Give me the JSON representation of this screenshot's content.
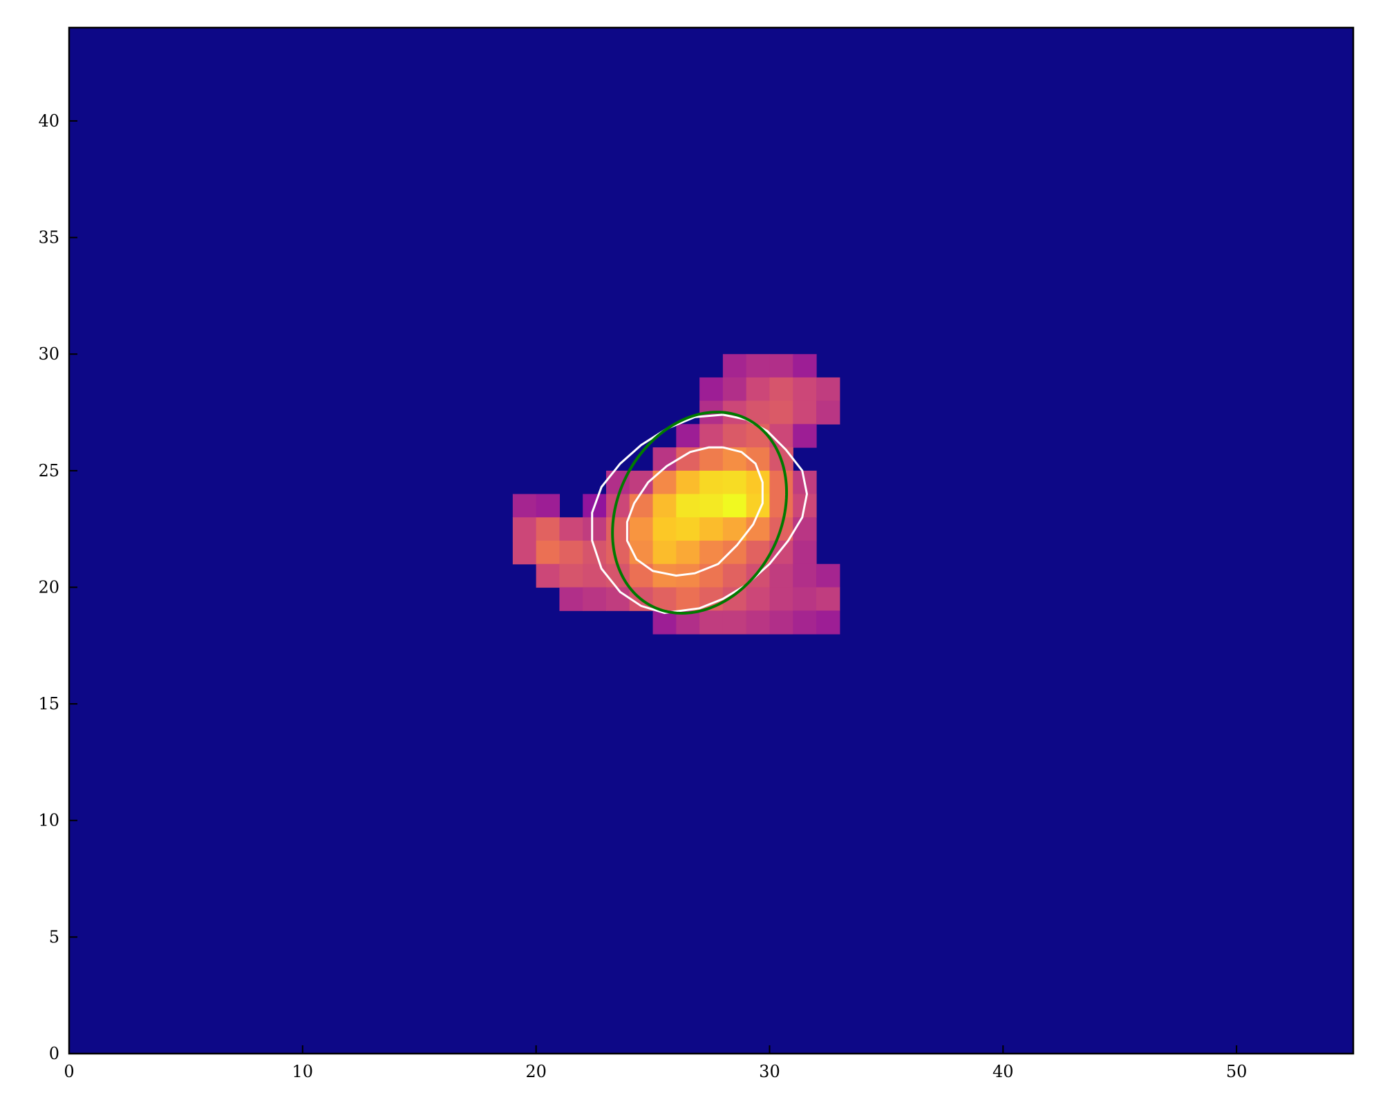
{
  "chart_data": {
    "type": "heatmap",
    "title": "",
    "xlabel": "",
    "ylabel": "",
    "xlim": [
      0,
      55
    ],
    "ylim": [
      0,
      44
    ],
    "xticks": [
      0,
      10,
      20,
      30,
      40,
      50
    ],
    "yticks": [
      0,
      5,
      10,
      15,
      20,
      25,
      30,
      35,
      40
    ],
    "xtick_labels": [
      "0",
      "10",
      "20",
      "30",
      "40",
      "50"
    ],
    "ytick_labels": [
      "0",
      "5",
      "10",
      "15",
      "20",
      "25",
      "30",
      "35",
      "40"
    ],
    "grid": false,
    "colormap": "plasma",
    "background_color": "#0d0887",
    "pixels_note_units": "x/y are pixel-cell lower-left corners in data units, value normalized 0-1",
    "cells": [
      {
        "x": 28,
        "y": 29,
        "v": 0.35
      },
      {
        "x": 29,
        "y": 29,
        "v": 0.38
      },
      {
        "x": 30,
        "y": 29,
        "v": 0.38
      },
      {
        "x": 31,
        "y": 29,
        "v": 0.33
      },
      {
        "x": 27,
        "y": 28,
        "v": 0.33
      },
      {
        "x": 28,
        "y": 28,
        "v": 0.38
      },
      {
        "x": 29,
        "y": 28,
        "v": 0.45
      },
      {
        "x": 30,
        "y": 28,
        "v": 0.5
      },
      {
        "x": 31,
        "y": 28,
        "v": 0.45
      },
      {
        "x": 32,
        "y": 28,
        "v": 0.42
      },
      {
        "x": 27,
        "y": 27,
        "v": 0.38
      },
      {
        "x": 28,
        "y": 27,
        "v": 0.45
      },
      {
        "x": 29,
        "y": 27,
        "v": 0.5
      },
      {
        "x": 30,
        "y": 27,
        "v": 0.52
      },
      {
        "x": 31,
        "y": 27,
        "v": 0.45
      },
      {
        "x": 32,
        "y": 27,
        "v": 0.4
      },
      {
        "x": 26,
        "y": 26,
        "v": 0.33
      },
      {
        "x": 27,
        "y": 26,
        "v": 0.45
      },
      {
        "x": 28,
        "y": 26,
        "v": 0.52
      },
      {
        "x": 29,
        "y": 26,
        "v": 0.55
      },
      {
        "x": 30,
        "y": 26,
        "v": 0.45
      },
      {
        "x": 31,
        "y": 26,
        "v": 0.33
      },
      {
        "x": 25,
        "y": 25,
        "v": 0.4
      },
      {
        "x": 26,
        "y": 25,
        "v": 0.55
      },
      {
        "x": 27,
        "y": 25,
        "v": 0.65
      },
      {
        "x": 28,
        "y": 25,
        "v": 0.72
      },
      {
        "x": 29,
        "y": 25,
        "v": 0.65
      },
      {
        "x": 30,
        "y": 25,
        "v": 0.5
      },
      {
        "x": 23,
        "y": 24,
        "v": 0.38
      },
      {
        "x": 24,
        "y": 24,
        "v": 0.42
      },
      {
        "x": 25,
        "y": 24,
        "v": 0.7
      },
      {
        "x": 26,
        "y": 24,
        "v": 0.85
      },
      {
        "x": 27,
        "y": 24,
        "v": 0.92
      },
      {
        "x": 28,
        "y": 24,
        "v": 0.93
      },
      {
        "x": 29,
        "y": 24,
        "v": 0.88
      },
      {
        "x": 30,
        "y": 24,
        "v": 0.6
      },
      {
        "x": 31,
        "y": 24,
        "v": 0.42
      },
      {
        "x": 19,
        "y": 23,
        "v": 0.35
      },
      {
        "x": 20,
        "y": 23,
        "v": 0.33
      },
      {
        "x": 22,
        "y": 23,
        "v": 0.3
      },
      {
        "x": 23,
        "y": 23,
        "v": 0.45
      },
      {
        "x": 24,
        "y": 23,
        "v": 0.65
      },
      {
        "x": 25,
        "y": 23,
        "v": 0.85
      },
      {
        "x": 26,
        "y": 23,
        "v": 0.95
      },
      {
        "x": 27,
        "y": 23,
        "v": 0.96
      },
      {
        "x": 28,
        "y": 23,
        "v": 1.0
      },
      {
        "x": 29,
        "y": 23,
        "v": 0.9
      },
      {
        "x": 30,
        "y": 23,
        "v": 0.6
      },
      {
        "x": 31,
        "y": 23,
        "v": 0.45
      },
      {
        "x": 19,
        "y": 22,
        "v": 0.45
      },
      {
        "x": 20,
        "y": 22,
        "v": 0.55
      },
      {
        "x": 21,
        "y": 22,
        "v": 0.45
      },
      {
        "x": 22,
        "y": 22,
        "v": 0.42
      },
      {
        "x": 23,
        "y": 22,
        "v": 0.55
      },
      {
        "x": 24,
        "y": 22,
        "v": 0.75
      },
      {
        "x": 25,
        "y": 22,
        "v": 0.88
      },
      {
        "x": 26,
        "y": 22,
        "v": 0.9
      },
      {
        "x": 27,
        "y": 22,
        "v": 0.85
      },
      {
        "x": 28,
        "y": 22,
        "v": 0.8
      },
      {
        "x": 29,
        "y": 22,
        "v": 0.7
      },
      {
        "x": 30,
        "y": 22,
        "v": 0.55
      },
      {
        "x": 31,
        "y": 22,
        "v": 0.4
      },
      {
        "x": 19,
        "y": 21,
        "v": 0.45
      },
      {
        "x": 20,
        "y": 21,
        "v": 0.6
      },
      {
        "x": 21,
        "y": 21,
        "v": 0.55
      },
      {
        "x": 22,
        "y": 21,
        "v": 0.5
      },
      {
        "x": 23,
        "y": 21,
        "v": 0.55
      },
      {
        "x": 24,
        "y": 21,
        "v": 0.72
      },
      {
        "x": 25,
        "y": 21,
        "v": 0.85
      },
      {
        "x": 26,
        "y": 21,
        "v": 0.8
      },
      {
        "x": 27,
        "y": 21,
        "v": 0.7
      },
      {
        "x": 28,
        "y": 21,
        "v": 0.65
      },
      {
        "x": 29,
        "y": 21,
        "v": 0.55
      },
      {
        "x": 30,
        "y": 21,
        "v": 0.45
      },
      {
        "x": 31,
        "y": 21,
        "v": 0.38
      },
      {
        "x": 20,
        "y": 20,
        "v": 0.45
      },
      {
        "x": 21,
        "y": 20,
        "v": 0.5
      },
      {
        "x": 22,
        "y": 20,
        "v": 0.48
      },
      {
        "x": 23,
        "y": 20,
        "v": 0.5
      },
      {
        "x": 24,
        "y": 20,
        "v": 0.6
      },
      {
        "x": 25,
        "y": 20,
        "v": 0.72
      },
      {
        "x": 26,
        "y": 20,
        "v": 0.7
      },
      {
        "x": 27,
        "y": 20,
        "v": 0.62
      },
      {
        "x": 28,
        "y": 20,
        "v": 0.55
      },
      {
        "x": 29,
        "y": 20,
        "v": 0.48
      },
      {
        "x": 30,
        "y": 20,
        "v": 0.42
      },
      {
        "x": 31,
        "y": 20,
        "v": 0.38
      },
      {
        "x": 32,
        "y": 20,
        "v": 0.35
      },
      {
        "x": 21,
        "y": 19,
        "v": 0.38
      },
      {
        "x": 22,
        "y": 19,
        "v": 0.4
      },
      {
        "x": 23,
        "y": 19,
        "v": 0.42
      },
      {
        "x": 24,
        "y": 19,
        "v": 0.5
      },
      {
        "x": 25,
        "y": 19,
        "v": 0.55
      },
      {
        "x": 26,
        "y": 19,
        "v": 0.6
      },
      {
        "x": 27,
        "y": 19,
        "v": 0.55
      },
      {
        "x": 28,
        "y": 19,
        "v": 0.5
      },
      {
        "x": 29,
        "y": 19,
        "v": 0.45
      },
      {
        "x": 30,
        "y": 19,
        "v": 0.42
      },
      {
        "x": 31,
        "y": 19,
        "v": 0.4
      },
      {
        "x": 32,
        "y": 19,
        "v": 0.42
      },
      {
        "x": 25,
        "y": 18,
        "v": 0.33
      },
      {
        "x": 26,
        "y": 18,
        "v": 0.38
      },
      {
        "x": 27,
        "y": 18,
        "v": 0.42
      },
      {
        "x": 28,
        "y": 18,
        "v": 0.42
      },
      {
        "x": 29,
        "y": 18,
        "v": 0.4
      },
      {
        "x": 30,
        "y": 18,
        "v": 0.38
      },
      {
        "x": 31,
        "y": 18,
        "v": 0.35
      },
      {
        "x": 32,
        "y": 18,
        "v": 0.33
      }
    ],
    "contours": [
      {
        "name": "",
        "color": "#ffffff",
        "points": [
          [
            28.0,
            27.4
          ],
          [
            29.0,
            27.2
          ],
          [
            29.9,
            26.7
          ],
          [
            30.7,
            25.9
          ],
          [
            31.4,
            25.0
          ],
          [
            31.6,
            24.0
          ],
          [
            31.4,
            23.0
          ],
          [
            30.8,
            22.0
          ],
          [
            30.0,
            21.0
          ],
          [
            29.0,
            20.1
          ],
          [
            28.0,
            19.5
          ],
          [
            27.0,
            19.1
          ],
          [
            25.5,
            18.9
          ],
          [
            24.5,
            19.2
          ],
          [
            23.6,
            19.8
          ],
          [
            22.8,
            20.8
          ],
          [
            22.4,
            22.0
          ],
          [
            22.4,
            23.2
          ],
          [
            22.8,
            24.3
          ],
          [
            23.6,
            25.3
          ],
          [
            24.5,
            26.1
          ],
          [
            25.6,
            26.8
          ],
          [
            26.8,
            27.3
          ],
          [
            28.0,
            27.4
          ]
        ]
      },
      {
        "name": "",
        "color": "#ffffff",
        "points": [
          [
            28.0,
            26.0
          ],
          [
            28.8,
            25.8
          ],
          [
            29.4,
            25.3
          ],
          [
            29.7,
            24.5
          ],
          [
            29.7,
            23.6
          ],
          [
            29.3,
            22.7
          ],
          [
            28.6,
            21.8
          ],
          [
            27.8,
            21.0
          ],
          [
            26.8,
            20.6
          ],
          [
            26.0,
            20.5
          ],
          [
            25.0,
            20.7
          ],
          [
            24.3,
            21.2
          ],
          [
            23.9,
            22.0
          ],
          [
            23.9,
            22.8
          ],
          [
            24.2,
            23.6
          ],
          [
            24.8,
            24.5
          ],
          [
            25.6,
            25.2
          ],
          [
            26.6,
            25.8
          ],
          [
            27.4,
            26.0
          ],
          [
            28.0,
            26.0
          ]
        ]
      }
    ],
    "ellipse": {
      "color": "#007a00",
      "center": [
        27.0,
        23.2
      ],
      "semi_major": 4.5,
      "semi_minor": 3.5,
      "angle_deg": 63
    }
  }
}
